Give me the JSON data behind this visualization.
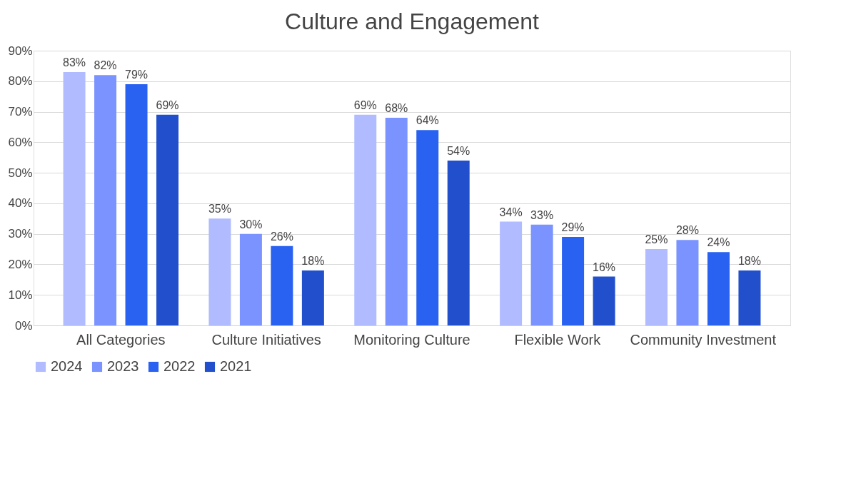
{
  "chart_data": {
    "type": "bar",
    "title": "Culture and Engagement",
    "categories": [
      "All Categories",
      "Culture Initiatives",
      "Monitoring Culture",
      "Flexible Work",
      "Community Investment"
    ],
    "series": [
      {
        "name": "2024",
        "color": "#b0bcff",
        "values": [
          83,
          35,
          69,
          34,
          25
        ],
        "value_labels": [
          "83%",
          "35%",
          "69%",
          "34%",
          "25%"
        ]
      },
      {
        "name": "2023",
        "color": "#7a93ff",
        "values": [
          82,
          30,
          68,
          33,
          28
        ],
        "value_labels": [
          "82%",
          "30%",
          "68%",
          "33%",
          "28%"
        ]
      },
      {
        "name": "2022",
        "color": "#2962f0",
        "values": [
          79,
          26,
          64,
          29,
          24
        ],
        "value_labels": [
          "79%",
          "26%",
          "64%",
          "29%",
          "24%"
        ]
      },
      {
        "name": "2021",
        "color": "#2250cc",
        "values": [
          69,
          18,
          54,
          16,
          18
        ],
        "value_labels": [
          "69%",
          "18%",
          "54%",
          "16%",
          "18%"
        ]
      }
    ],
    "ylim": [
      0,
      90
    ],
    "yticks": [
      {
        "value": 0,
        "label": "0%"
      },
      {
        "value": 10,
        "label": "10%"
      },
      {
        "value": 20,
        "label": "20%"
      },
      {
        "value": 30,
        "label": "30%"
      },
      {
        "value": 40,
        "label": "40%"
      },
      {
        "value": 50,
        "label": "50%"
      },
      {
        "value": 60,
        "label": "60%"
      },
      {
        "value": 70,
        "label": "70%"
      },
      {
        "value": 80,
        "label": "80%"
      },
      {
        "value": 90,
        "label": "90%"
      }
    ],
    "grid": "y",
    "legend": "bottom"
  }
}
